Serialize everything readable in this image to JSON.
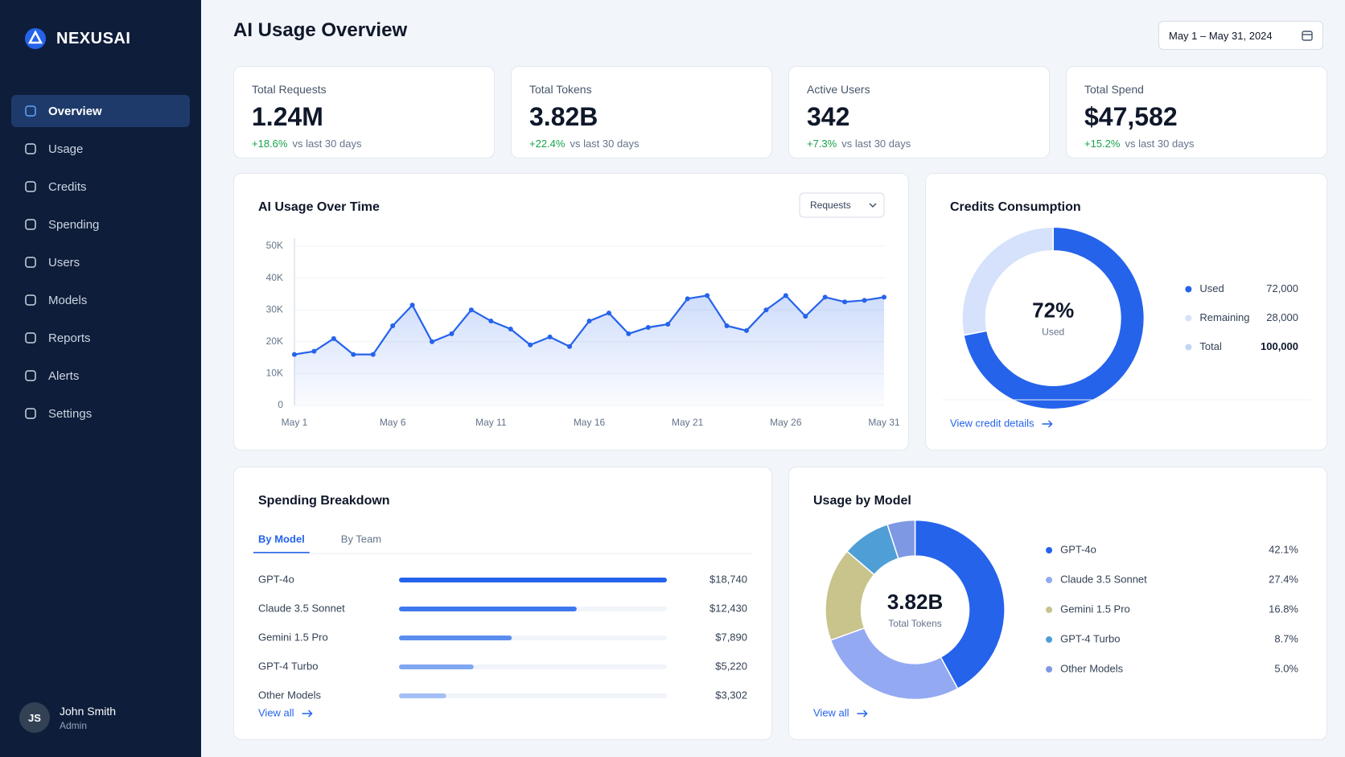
{
  "brand": "NEXUSAI",
  "nav": [
    {
      "label": "Overview",
      "active": true
    },
    {
      "label": "Usage"
    },
    {
      "label": "Credits"
    },
    {
      "label": "Spending"
    },
    {
      "label": "Users"
    },
    {
      "label": "Models"
    },
    {
      "label": "Reports"
    },
    {
      "label": "Alerts"
    },
    {
      "label": "Settings"
    }
  ],
  "user": {
    "initials": "JS",
    "name": "John Smith",
    "role": "Admin"
  },
  "header": {
    "title": "AI Usage Overview",
    "date_range": "May 1 – May 31, 2024"
  },
  "kpis": [
    {
      "label": "Total Requests",
      "value": "1.24M",
      "change": "+18.6%",
      "period": "vs last 30 days"
    },
    {
      "label": "Total Tokens",
      "value": "3.82B",
      "change": "+22.4%",
      "period": "vs last 30 days"
    },
    {
      "label": "Active Users",
      "value": "342",
      "change": "+7.3%",
      "period": "vs last 30 days"
    },
    {
      "label": "Total Spend",
      "value": "$47,582",
      "change": "+15.2%",
      "period": "vs last 30 days"
    }
  ],
  "chart_data": [
    {
      "type": "line",
      "title": "AI Usage Over Time",
      "selector": "Requests",
      "categories": [
        "May 1",
        null,
        null,
        null,
        null,
        "May 6",
        null,
        null,
        null,
        null,
        "May 11",
        null,
        null,
        null,
        null,
        "May 16",
        null,
        null,
        null,
        null,
        "May 21",
        null,
        null,
        null,
        null,
        "May 26",
        null,
        null,
        null,
        null,
        "May 31"
      ],
      "values": [
        16000,
        17000,
        21000,
        16000,
        16000,
        25000,
        31500,
        20000,
        22500,
        30000,
        26500,
        24000,
        19000,
        21500,
        18500,
        26500,
        29000,
        22500,
        24500,
        25500,
        33500,
        34500,
        25000,
        23500,
        30000,
        34500,
        28000,
        34000,
        32500,
        33000,
        34000
      ],
      "color": "#2563eb",
      "ylim": [
        0,
        50000
      ],
      "yticks": [
        0,
        {
          "value": 10000,
          "label": "10K"
        },
        {
          "value": 20000,
          "label": "20K"
        },
        {
          "value": 30000,
          "label": "30K"
        },
        {
          "value": 40000,
          "label": "40K"
        },
        {
          "value": 50000,
          "label": "50K"
        }
      ],
      "grid": true
    },
    {
      "type": "donut",
      "title": "Credits Consumption",
      "center_label": "72%",
      "center_sublabel": "Used",
      "categories": [
        "Used",
        "Remaining"
      ],
      "values": [
        72000,
        28000
      ],
      "value_labels": [
        "72,000",
        "28,000"
      ],
      "colors": [
        "#2563eb",
        "#d6e2fb"
      ],
      "total": {
        "name": "Total",
        "value": 100000,
        "value_label": "100,000",
        "color": "#c3d4f6"
      },
      "link": "View credit details"
    },
    {
      "type": "hbar",
      "title": "Spending Breakdown",
      "tabs": [
        {
          "label": "By Model",
          "active": true
        },
        {
          "label": "By Team"
        }
      ],
      "categories": [
        "GPT-4o",
        "Claude 3.5 Sonnet",
        "Gemini 1.5 Pro",
        "GPT-4 Turbo",
        "Other Models"
      ],
      "values": [
        18740,
        12430,
        7890,
        5220,
        3302
      ],
      "value_labels": [
        "$18,740",
        "$12,430",
        "$7,890",
        "$5,220",
        "$3,302"
      ],
      "colors": [
        "#2563eb",
        "#3d78ee",
        "#5b8def",
        "#7ea6f2",
        "#a3bff5"
      ],
      "link": "View all"
    },
    {
      "type": "donut",
      "title": "Usage by Model",
      "center_label": "3.82B",
      "center_sublabel": "Total Tokens",
      "categories": [
        "GPT-4o",
        "Claude 3.5 Sonnet",
        "Gemini 1.5 Pro",
        "GPT-4 Turbo",
        "Other Models"
      ],
      "values": [
        42.1,
        27.4,
        16.8,
        8.7,
        5.0
      ],
      "value_labels": [
        "42.1%",
        "27.4%",
        "16.8%",
        "8.7%",
        "5.0%"
      ],
      "colors": [
        "#2563eb",
        "#93a9f2",
        "#c9c38c",
        "#4f9fd6",
        "#7f98e3"
      ],
      "link": "View all"
    }
  ]
}
